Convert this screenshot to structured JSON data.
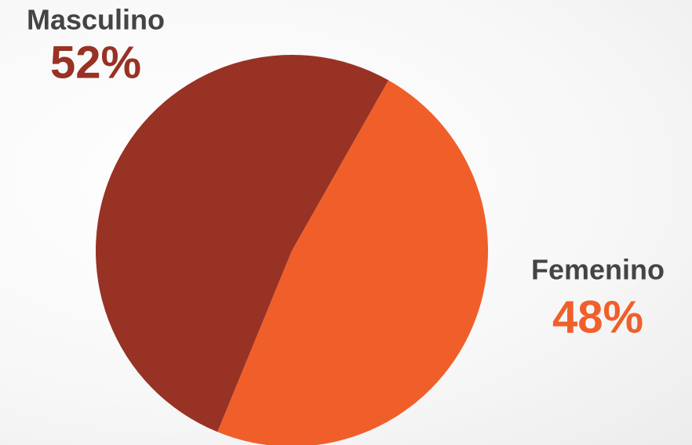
{
  "chart_data": {
    "type": "pie",
    "categories": [
      "Masculino",
      "Femenino"
    ],
    "values": [
      52,
      48
    ],
    "value_labels": [
      "52%",
      "48%"
    ],
    "colors": [
      "#983224",
      "#f05f2a"
    ]
  }
}
